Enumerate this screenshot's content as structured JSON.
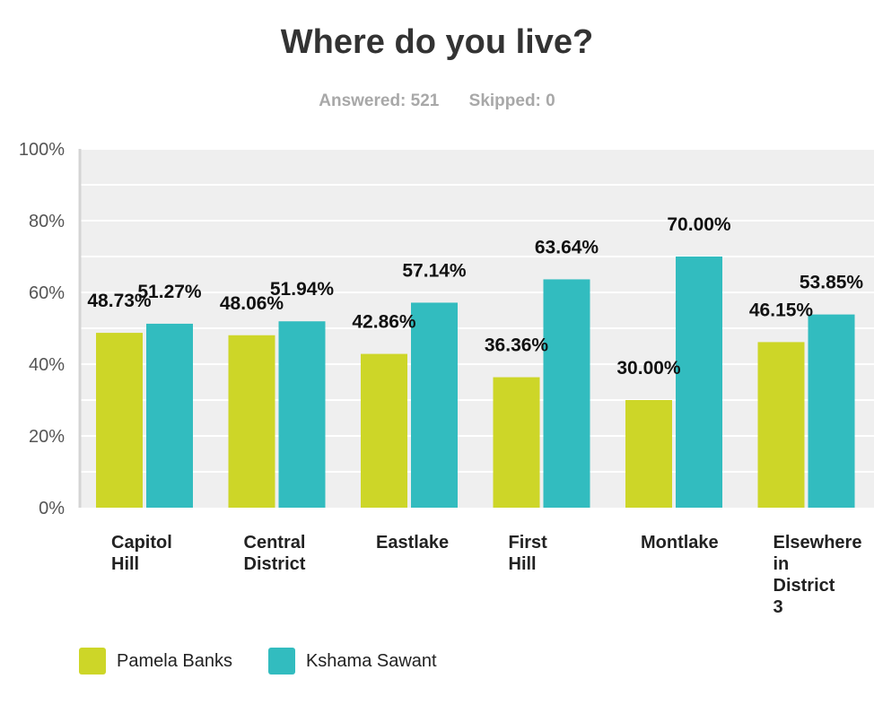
{
  "chart_data": {
    "type": "bar",
    "title": "Where do you live?",
    "subtitle": {
      "answered": "Answered: 521",
      "skipped": "Skipped: 0"
    },
    "categories": [
      [
        "Capitol",
        "Hill"
      ],
      [
        "Central",
        "District"
      ],
      [
        "Eastlake"
      ],
      [
        "First",
        "Hill"
      ],
      [
        "Montlake"
      ],
      [
        "Elsewhere",
        "in",
        "District",
        "3"
      ]
    ],
    "series": [
      {
        "name": "Pamela Banks",
        "color": "#cdd628",
        "values": [
          48.73,
          48.06,
          42.86,
          36.36,
          30.0,
          46.15
        ],
        "labels": [
          "48.73%",
          "48.06%",
          "42.86%",
          "36.36%",
          "30.00%",
          "46.15%"
        ]
      },
      {
        "name": "Kshama Sawant",
        "color": "#32bcbf",
        "values": [
          51.27,
          51.94,
          57.14,
          63.64,
          70.0,
          53.85
        ],
        "labels": [
          "51.27%",
          "51.94%",
          "57.14%",
          "63.64%",
          "70.00%",
          "53.85%"
        ]
      }
    ],
    "yticks": [
      0,
      20,
      40,
      60,
      80,
      100
    ],
    "ytick_labels": [
      "0%",
      "20%",
      "40%",
      "60%",
      "80%",
      "100%"
    ],
    "ylim": [
      0,
      100
    ],
    "grid": true,
    "legend": "bottom-left"
  }
}
